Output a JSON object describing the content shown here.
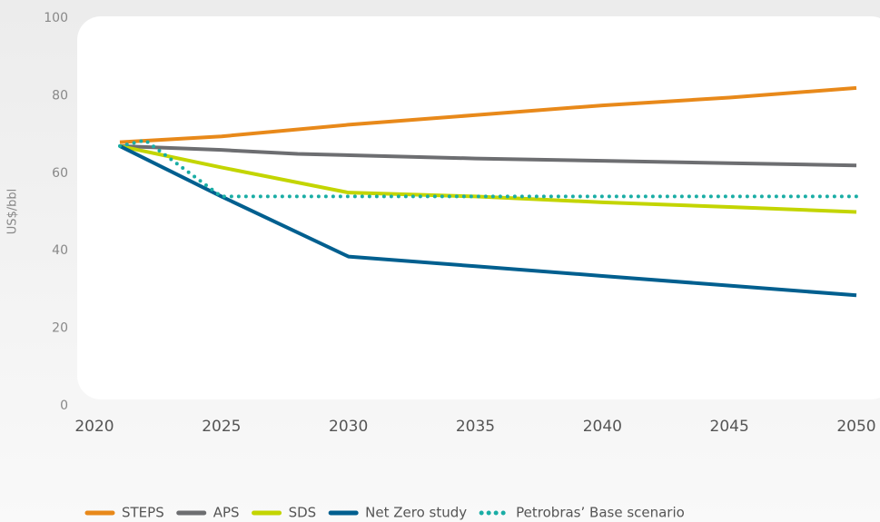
{
  "chart_data": {
    "type": "line",
    "ylabel": "US$/bbl",
    "xlim": [
      2020,
      2050
    ],
    "xticks": [
      2020,
      2025,
      2030,
      2035,
      2040,
      2045,
      2050
    ],
    "ylim": [
      0,
      100
    ],
    "yticks": [
      0,
      20,
      40,
      60,
      80,
      100
    ],
    "legend": "bottom",
    "series": [
      {
        "name": "STEPS",
        "color": "#e8891a",
        "style": "solid",
        "x": [
          2021,
          2025,
          2030,
          2035,
          2040,
          2045,
          2050
        ],
        "values": [
          68,
          69.5,
          72.5,
          75,
          77.5,
          79.5,
          82
        ]
      },
      {
        "name": "APS",
        "color": "#6d6e71",
        "style": "solid",
        "x": [
          2021,
          2025,
          2028,
          2035,
          2040,
          2045,
          2050
        ],
        "values": [
          67,
          66,
          65,
          63.8,
          63.2,
          62.6,
          62
        ]
      },
      {
        "name": "SDS",
        "color": "#c3d500",
        "style": "solid",
        "x": [
          2021,
          2025,
          2030,
          2035,
          2040,
          2045,
          2050
        ],
        "values": [
          67,
          61.5,
          55,
          54,
          52.5,
          51.3,
          50
        ]
      },
      {
        "name": "Net Zero study",
        "color": "#005f8f",
        "style": "solid",
        "x": [
          2021,
          2025,
          2030,
          2035,
          2040,
          2045,
          2050
        ],
        "values": [
          67,
          54,
          38.5,
          36,
          33.5,
          31,
          28.5
        ]
      },
      {
        "name": "Petrobras’ Base scenario",
        "color": "#1aada5",
        "style": "dotted",
        "x": [
          2021,
          2022,
          2025,
          2030,
          2040,
          2050
        ],
        "values": [
          67,
          68.5,
          54,
          54,
          54,
          54
        ]
      }
    ]
  }
}
